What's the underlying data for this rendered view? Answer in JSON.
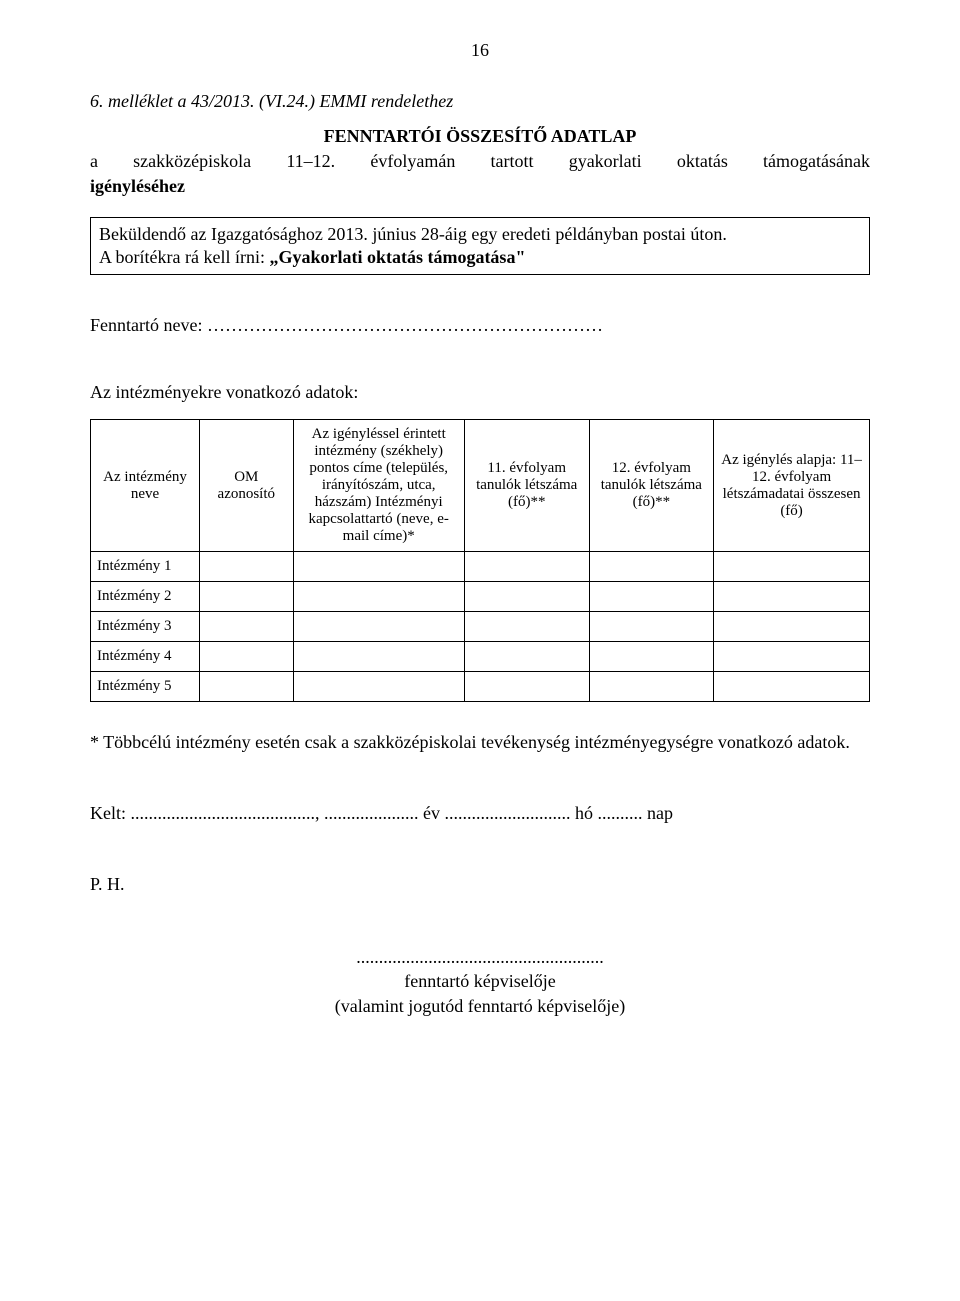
{
  "page_number": "16",
  "attachment_ref": "6. melléklet a 43/2013. (VI.24.) EMMI rendelethez",
  "form_title": "FENNTARTÓI ÖSSZESÍTŐ ADATLAP",
  "subject_prefix": "a szakközépiskola 11–12. évfolyamán tartott gyakorlati oktatás támogatásának",
  "subject_bold": "igényléséhez",
  "boxed_line1": "Beküldendő az Igazgatósághoz 2013. június 28-áig egy eredeti példányban postai úton.",
  "boxed_line2_prefix": "A borítékra rá kell írni: ",
  "boxed_line2_quote": "„Gyakorlati oktatás támogatása\"",
  "maintainer_label": "Fenntartó neve: …………………………………………………………",
  "section_label": "Az intézményekre vonatkozó adatok:",
  "table": {
    "headers": {
      "col_a": "Az intézmény neve",
      "col_b": "OM azonosító",
      "col_c": "Az igényléssel érintett intézmény (székhely) pontos címe (település, irányítószám, utca, házszám) Intézményi kapcsolattartó (neve, e-mail címe)*",
      "col_d": "11. évfolyam tanulók létszáma (fő)**",
      "col_e": "12. évfolyam tanulók létszáma (fő)**",
      "col_f": "Az igénylés alapja: 11–12. évfolyam létszámadatai összesen (fő)"
    },
    "rows": [
      {
        "label": "Intézmény 1",
        "b": "",
        "c": "",
        "d": "",
        "e": "",
        "f": ""
      },
      {
        "label": "Intézmény 2",
        "b": "",
        "c": "",
        "d": "",
        "e": "",
        "f": ""
      },
      {
        "label": "Intézmény 3",
        "b": "",
        "c": "",
        "d": "",
        "e": "",
        "f": ""
      },
      {
        "label": "Intézmény 4",
        "b": "",
        "c": "",
        "d": "",
        "e": "",
        "f": ""
      },
      {
        "label": "Intézmény 5",
        "b": "",
        "c": "",
        "d": "",
        "e": "",
        "f": ""
      }
    ]
  },
  "footnote": "*  Többcélú intézmény esetén csak a szakközépiskolai tevékenység intézményegységre vonatkozó adatok.",
  "dated_line": "Kelt: ........................................., ..................... év ............................ hó .......... nap",
  "ph": "P. H.",
  "sig_dots": ".......................................................",
  "sig_line1": "fenntartó képviselője",
  "sig_line2": "(valamint jogutód fenntartó képviselője)"
}
